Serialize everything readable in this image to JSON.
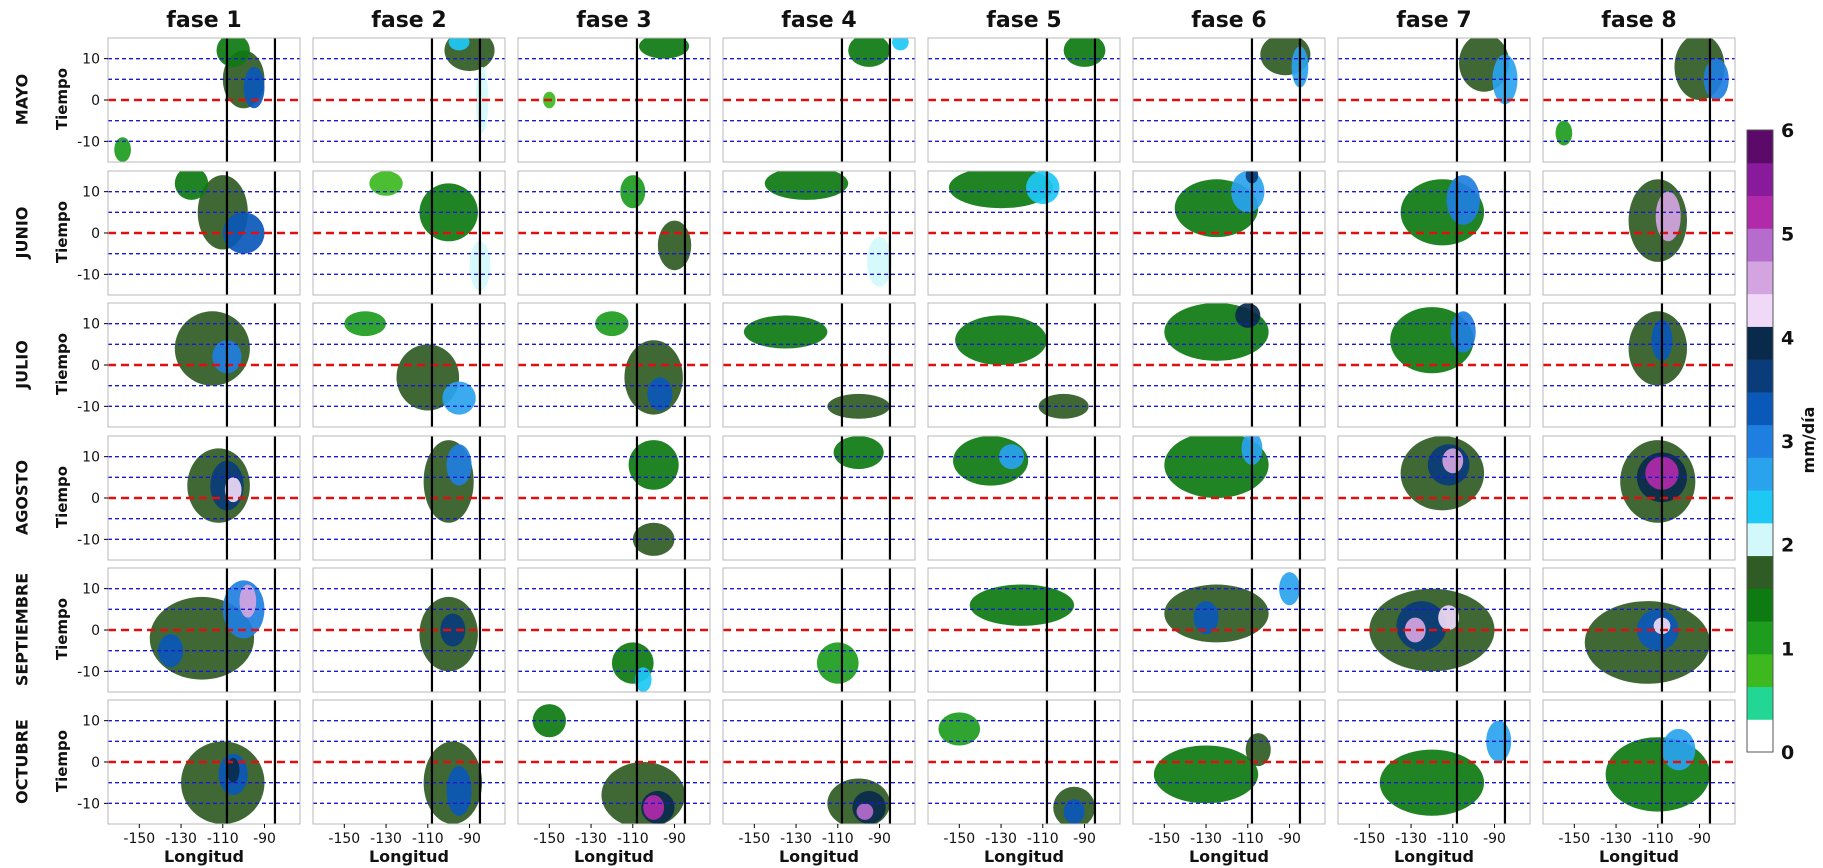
{
  "chart_data": {
    "type": "heatmap",
    "description_units": "mm/día",
    "phases": [
      "fase 1",
      "fase 2",
      "fase 3",
      "fase 4",
      "fase 5",
      "fase 6",
      "fase 7",
      "fase 8"
    ],
    "months": [
      "MAYO",
      "JUNIO",
      "JULIO",
      "AGOSTO",
      "SEPTIEMBRE",
      "OCTUBRE"
    ],
    "xlabel": "Longitud",
    "ylabel": "Tiempo",
    "x_ticks": [
      -150,
      -130,
      -110,
      -90
    ],
    "x_range": [
      -165,
      -73
    ],
    "y_ticks": [
      10,
      0,
      -10
    ],
    "y_range": [
      -15,
      15
    ],
    "reference_lines": {
      "vertical_black_longitudes": [
        -108,
        -85
      ],
      "red_dashed_time": [
        0
      ],
      "blue_dashed_time": [
        10,
        5,
        -5,
        -10
      ]
    },
    "colorbar": {
      "label": "mm/día",
      "ticks": [
        0,
        1,
        2,
        3,
        4,
        5,
        6
      ],
      "range": [
        0,
        6
      ],
      "levels": [
        0,
        0.5,
        1,
        1.5,
        2,
        2.5,
        3,
        3.5,
        4,
        4.5,
        5,
        5.5,
        6
      ],
      "colors": [
        "#ffffff",
        "#22d694",
        "#3db91f",
        "#1e9c1e",
        "#0d7a12",
        "#2f5b24",
        "#d2f8fb",
        "#1ec8f5",
        "#2aa3ee",
        "#1f7fe0",
        "#0a58b8",
        "#0a3c7a",
        "#0a2a4c",
        "#efd9f7",
        "#d4a4e0",
        "#b56ccc",
        "#b02aa9",
        "#8a1a9c",
        "#5c0a6a"
      ]
    },
    "panels": [
      {
        "month": "MAYO",
        "phase": "fase 1",
        "max_value": 3.5,
        "blobs": [
          [
            -100,
            5,
            10,
            7,
            1.8
          ],
          [
            -95,
            3,
            5,
            5,
            3.2
          ],
          [
            -105,
            12,
            8,
            4,
            1.5
          ],
          [
            -158,
            -12,
            4,
            3,
            1.0
          ]
        ]
      },
      {
        "month": "MAYO",
        "phase": "fase 2",
        "max_value": 2.8,
        "blobs": [
          [
            -90,
            12,
            12,
            5,
            1.6
          ],
          [
            -84,
            0,
            3,
            8,
            2.2
          ],
          [
            -95,
            14,
            5,
            2,
            2.5
          ]
        ]
      },
      {
        "month": "MAYO",
        "phase": "fase 3",
        "max_value": 2.0,
        "blobs": [
          [
            -95,
            13,
            12,
            3,
            1.3
          ],
          [
            -150,
            0,
            3,
            2,
            0.8
          ]
        ]
      },
      {
        "month": "MAYO",
        "phase": "fase 4",
        "max_value": 2.4,
        "blobs": [
          [
            -95,
            12,
            10,
            4,
            1.5
          ],
          [
            -80,
            14,
            4,
            2,
            2.4
          ]
        ]
      },
      {
        "month": "MAYO",
        "phase": "fase 5",
        "max_value": 2.0,
        "blobs": [
          [
            -90,
            12,
            10,
            4,
            1.4
          ]
        ]
      },
      {
        "month": "MAYO",
        "phase": "fase 6",
        "max_value": 3.0,
        "blobs": [
          [
            -92,
            11,
            12,
            5,
            1.8
          ],
          [
            -85,
            8,
            4,
            5,
            2.6
          ]
        ]
      },
      {
        "month": "MAYO",
        "phase": "fase 7",
        "max_value": 3.2,
        "blobs": [
          [
            -95,
            9,
            12,
            7,
            1.8
          ],
          [
            -85,
            5,
            6,
            6,
            2.8
          ]
        ]
      },
      {
        "month": "MAYO",
        "phase": "fase 8",
        "max_value": 3.4,
        "blobs": [
          [
            -90,
            8,
            12,
            8,
            1.8
          ],
          [
            -82,
            5,
            6,
            5,
            3.0
          ],
          [
            -155,
            -8,
            4,
            3,
            1.0
          ]
        ]
      },
      {
        "month": "JUNIO",
        "phase": "fase 1",
        "max_value": 3.6,
        "blobs": [
          [
            -110,
            5,
            12,
            9,
            1.7
          ],
          [
            -100,
            0,
            10,
            5,
            3.3
          ],
          [
            -125,
            12,
            8,
            4,
            1.3
          ]
        ]
      },
      {
        "month": "JUNIO",
        "phase": "fase 2",
        "max_value": 2.6,
        "blobs": [
          [
            -100,
            5,
            14,
            7,
            1.4
          ],
          [
            -85,
            -8,
            5,
            6,
            2.2
          ],
          [
            -130,
            12,
            8,
            3,
            0.9
          ]
        ]
      },
      {
        "month": "JUNIO",
        "phase": "fase 3",
        "max_value": 2.4,
        "blobs": [
          [
            -90,
            -3,
            8,
            6,
            1.6
          ],
          [
            -110,
            10,
            6,
            4,
            1.0
          ]
        ]
      },
      {
        "month": "JUNIO",
        "phase": "fase 4",
        "max_value": 2.6,
        "blobs": [
          [
            -125,
            12,
            20,
            4,
            1.3
          ],
          [
            -90,
            -7,
            6,
            6,
            2.0
          ]
        ]
      },
      {
        "month": "JUNIO",
        "phase": "fase 5",
        "max_value": 3.0,
        "blobs": [
          [
            -130,
            11,
            25,
            5,
            1.3
          ],
          [
            -110,
            11,
            8,
            4,
            2.5
          ]
        ]
      },
      {
        "month": "JUNIO",
        "phase": "fase 6",
        "max_value": 4.0,
        "blobs": [
          [
            -125,
            6,
            20,
            7,
            1.4
          ],
          [
            -110,
            10,
            8,
            5,
            2.6
          ],
          [
            -108,
            14,
            3,
            2,
            3.6
          ]
        ]
      },
      {
        "month": "JUNIO",
        "phase": "fase 7",
        "max_value": 3.4,
        "blobs": [
          [
            -115,
            5,
            20,
            8,
            1.5
          ],
          [
            -105,
            8,
            8,
            6,
            2.9
          ]
        ]
      },
      {
        "month": "JUNIO",
        "phase": "fase 8",
        "max_value": 5.0,
        "blobs": [
          [
            -110,
            3,
            14,
            10,
            1.6
          ],
          [
            -105,
            4,
            6,
            6,
            4.5
          ]
        ]
      },
      {
        "month": "JULIO",
        "phase": "fase 1",
        "max_value": 3.2,
        "blobs": [
          [
            -115,
            4,
            18,
            9,
            1.6
          ],
          [
            -108,
            2,
            7,
            4,
            3.0
          ]
        ]
      },
      {
        "month": "JULIO",
        "phase": "fase 2",
        "max_value": 3.0,
        "blobs": [
          [
            -110,
            -3,
            15,
            8,
            1.6
          ],
          [
            -95,
            -8,
            8,
            4,
            2.6
          ],
          [
            -140,
            10,
            10,
            3,
            1.0
          ]
        ]
      },
      {
        "month": "JULIO",
        "phase": "fase 3",
        "max_value": 3.6,
        "blobs": [
          [
            -100,
            -3,
            14,
            9,
            1.8
          ],
          [
            -97,
            -7,
            6,
            4,
            3.3
          ],
          [
            -120,
            10,
            8,
            3,
            1.2
          ]
        ]
      },
      {
        "month": "JULIO",
        "phase": "fase 4",
        "max_value": 2.6,
        "blobs": [
          [
            -135,
            8,
            20,
            4,
            1.3
          ],
          [
            -100,
            -10,
            15,
            3,
            1.8
          ]
        ]
      },
      {
        "month": "JULIO",
        "phase": "fase 5",
        "max_value": 2.6,
        "blobs": [
          [
            -130,
            6,
            22,
            6,
            1.3
          ],
          [
            -100,
            -10,
            12,
            3,
            1.6
          ]
        ]
      },
      {
        "month": "JULIO",
        "phase": "fase 6",
        "max_value": 4.2,
        "blobs": [
          [
            -125,
            8,
            25,
            7,
            1.4
          ],
          [
            -110,
            12,
            6,
            3,
            3.8
          ]
        ]
      },
      {
        "month": "JULIO",
        "phase": "fase 7",
        "max_value": 3.6,
        "blobs": [
          [
            -120,
            6,
            20,
            8,
            1.5
          ],
          [
            -105,
            8,
            6,
            5,
            3.0
          ]
        ]
      },
      {
        "month": "JULIO",
        "phase": "fase 8",
        "max_value": 3.5,
        "blobs": [
          [
            -110,
            4,
            14,
            9,
            1.6
          ],
          [
            -108,
            6,
            5,
            5,
            3.2
          ]
        ]
      },
      {
        "month": "AGOSTO",
        "phase": "fase 1",
        "max_value": 4.5,
        "blobs": [
          [
            -112,
            3,
            15,
            9,
            1.8
          ],
          [
            -108,
            3,
            8,
            6,
            3.5
          ],
          [
            -105,
            2,
            4,
            3,
            4.2
          ]
        ]
      },
      {
        "month": "AGOSTO",
        "phase": "fase 2",
        "max_value": 3.4,
        "blobs": [
          [
            -100,
            4,
            12,
            10,
            1.7
          ],
          [
            -95,
            8,
            6,
            5,
            3.0
          ]
        ]
      },
      {
        "month": "AGOSTO",
        "phase": "fase 3",
        "max_value": 2.6,
        "blobs": [
          [
            -100,
            8,
            12,
            6,
            1.4
          ],
          [
            -100,
            -10,
            10,
            4,
            1.6
          ]
        ]
      },
      {
        "month": "AGOSTO",
        "phase": "fase 4",
        "max_value": 2.4,
        "blobs": [
          [
            -100,
            11,
            12,
            4,
            1.4
          ]
        ]
      },
      {
        "month": "AGOSTO",
        "phase": "fase 5",
        "max_value": 3.0,
        "blobs": [
          [
            -135,
            9,
            18,
            6,
            1.4
          ],
          [
            -125,
            10,
            6,
            3,
            2.7
          ]
        ]
      },
      {
        "month": "AGOSTO",
        "phase": "fase 6",
        "max_value": 3.2,
        "blobs": [
          [
            -125,
            8,
            25,
            8,
            1.4
          ],
          [
            -108,
            12,
            5,
            4,
            2.8
          ]
        ]
      },
      {
        "month": "AGOSTO",
        "phase": "fase 7",
        "max_value": 5.0,
        "blobs": [
          [
            -115,
            6,
            20,
            9,
            1.7
          ],
          [
            -112,
            8,
            10,
            5,
            3.6
          ],
          [
            -110,
            9,
            5,
            3,
            4.7
          ]
        ]
      },
      {
        "month": "AGOSTO",
        "phase": "fase 8",
        "max_value": 5.6,
        "blobs": [
          [
            -110,
            4,
            18,
            10,
            1.8
          ],
          [
            -108,
            5,
            12,
            6,
            4.0
          ],
          [
            -108,
            6,
            8,
            4,
            5.3
          ]
        ]
      },
      {
        "month": "SEPTIEMBRE",
        "phase": "fase 1",
        "max_value": 4.8,
        "blobs": [
          [
            -120,
            -2,
            25,
            10,
            1.6
          ],
          [
            -100,
            5,
            10,
            7,
            3.0
          ],
          [
            -98,
            7,
            4,
            4,
            4.5
          ],
          [
            -135,
            -5,
            6,
            4,
            3.4
          ]
        ]
      },
      {
        "month": "SEPTIEMBRE",
        "phase": "fase 2",
        "max_value": 4.0,
        "blobs": [
          [
            -100,
            -1,
            14,
            9,
            1.7
          ],
          [
            -98,
            0,
            6,
            4,
            3.6
          ]
        ]
      },
      {
        "month": "SEPTIEMBRE",
        "phase": "fase 3",
        "max_value": 2.8,
        "blobs": [
          [
            -110,
            -8,
            10,
            5,
            1.5
          ],
          [
            -105,
            -12,
            4,
            3,
            2.5
          ]
        ]
      },
      {
        "month": "SEPTIEMBRE",
        "phase": "fase 4",
        "max_value": 2.2,
        "blobs": [
          [
            -110,
            -8,
            10,
            5,
            1.2
          ]
        ]
      },
      {
        "month": "SEPTIEMBRE",
        "phase": "fase 5",
        "max_value": 2.2,
        "blobs": [
          [
            -120,
            6,
            25,
            5,
            1.3
          ]
        ]
      },
      {
        "month": "SEPTIEMBRE",
        "phase": "fase 6",
        "max_value": 3.6,
        "blobs": [
          [
            -125,
            4,
            25,
            7,
            1.6
          ],
          [
            -130,
            3,
            6,
            4,
            3.2
          ],
          [
            -90,
            10,
            5,
            4,
            2.6
          ]
        ]
      },
      {
        "month": "SEPTIEMBRE",
        "phase": "fase 7",
        "max_value": 5.0,
        "blobs": [
          [
            -120,
            0,
            30,
            10,
            1.7
          ],
          [
            -125,
            1,
            12,
            6,
            3.5
          ],
          [
            -128,
            0,
            5,
            3,
            4.6
          ],
          [
            -112,
            3,
            5,
            3,
            4.2
          ]
        ]
      },
      {
        "month": "SEPTIEMBRE",
        "phase": "fase 8",
        "max_value": 4.4,
        "blobs": [
          [
            -115,
            -3,
            30,
            10,
            1.8
          ],
          [
            -110,
            0,
            10,
            5,
            3.3
          ],
          [
            -108,
            1,
            4,
            2,
            4.2
          ]
        ]
      },
      {
        "month": "OCTUBRE",
        "phase": "fase 1",
        "max_value": 4.2,
        "blobs": [
          [
            -110,
            -5,
            20,
            10,
            1.6
          ],
          [
            -105,
            -3,
            7,
            5,
            3.4
          ],
          [
            -105,
            -2,
            3,
            3,
            4.0
          ]
        ]
      },
      {
        "month": "OCTUBRE",
        "phase": "fase 2",
        "max_value": 3.8,
        "blobs": [
          [
            -98,
            -5,
            14,
            10,
            1.7
          ],
          [
            -95,
            -7,
            6,
            6,
            3.3
          ]
        ]
      },
      {
        "month": "OCTUBRE",
        "phase": "fase 3",
        "max_value": 5.6,
        "blobs": [
          [
            -105,
            -8,
            20,
            8,
            1.8
          ],
          [
            -98,
            -11,
            8,
            4,
            4.0
          ],
          [
            -100,
            -11,
            5,
            3,
            5.3
          ],
          [
            -150,
            10,
            8,
            4,
            1.5
          ]
        ]
      },
      {
        "month": "OCTUBRE",
        "phase": "fase 4",
        "max_value": 5.2,
        "blobs": [
          [
            -100,
            -10,
            15,
            6,
            1.7
          ],
          [
            -95,
            -11,
            8,
            4,
            4.0
          ],
          [
            -97,
            -12,
            4,
            2,
            4.9
          ]
        ]
      },
      {
        "month": "OCTUBRE",
        "phase": "fase 5",
        "max_value": 3.6,
        "blobs": [
          [
            -95,
            -11,
            10,
            5,
            1.8
          ],
          [
            -95,
            -12,
            5,
            3,
            3.2
          ],
          [
            -150,
            8,
            10,
            4,
            1.2
          ]
        ]
      },
      {
        "month": "OCTUBRE",
        "phase": "fase 6",
        "max_value": 2.6,
        "blobs": [
          [
            -130,
            -3,
            25,
            7,
            1.4
          ],
          [
            -105,
            3,
            6,
            4,
            1.8
          ]
        ]
      },
      {
        "month": "OCTUBRE",
        "phase": "fase 7",
        "max_value": 3.2,
        "blobs": [
          [
            -120,
            -5,
            25,
            8,
            1.4
          ],
          [
            -88,
            5,
            6,
            5,
            2.8
          ]
        ]
      },
      {
        "month": "OCTUBRE",
        "phase": "fase 8",
        "max_value": 3.0,
        "blobs": [
          [
            -110,
            -3,
            25,
            9,
            1.5
          ],
          [
            -100,
            3,
            8,
            5,
            2.6
          ]
        ]
      }
    ]
  }
}
